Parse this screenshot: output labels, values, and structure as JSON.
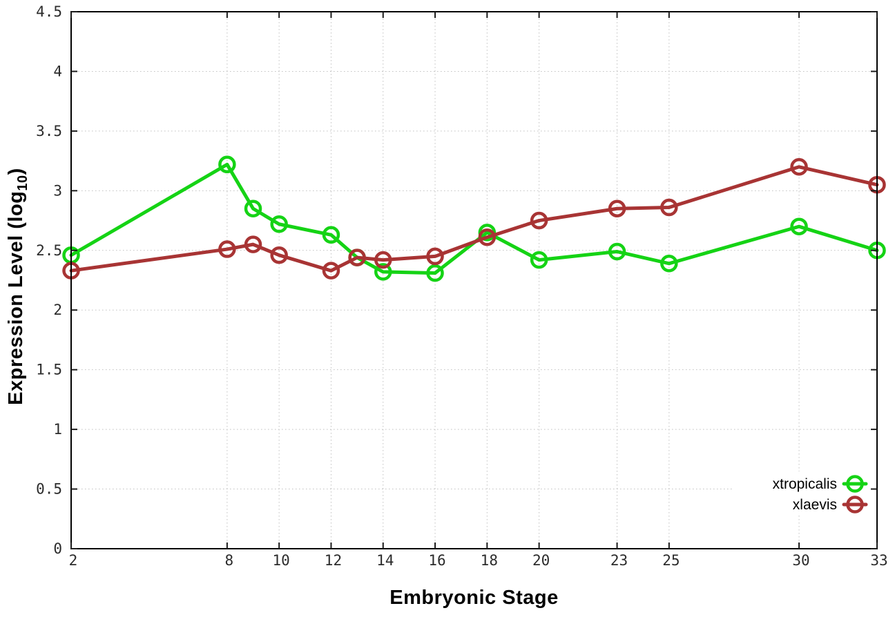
{
  "chart_data": {
    "type": "line",
    "title": "",
    "xlabel": "Embryonic Stage",
    "ylabel": "Expression Level (log10)",
    "ylabel_parts": {
      "main": "Expression Level (log",
      "sub": "10",
      "end": ")"
    },
    "xlim": [
      2,
      33
    ],
    "ylim": [
      0,
      4.5
    ],
    "grid": "dotted",
    "legend_position": "inside-bottom-right",
    "xticks": [
      {
        "v": 2,
        "label": "2"
      },
      {
        "v": 8,
        "label": "8"
      },
      {
        "v": 10,
        "label": "10"
      },
      {
        "v": 12,
        "label": "12"
      },
      {
        "v": 14,
        "label": "14"
      },
      {
        "v": 16,
        "label": "16"
      },
      {
        "v": 18,
        "label": "18"
      },
      {
        "v": 20,
        "label": "20"
      },
      {
        "v": 23,
        "label": "23"
      },
      {
        "v": 25,
        "label": "25"
      },
      {
        "v": 30,
        "label": "30"
      },
      {
        "v": 33,
        "label": "33"
      }
    ],
    "yticks": [
      {
        "v": 0,
        "label": "0"
      },
      {
        "v": 0.5,
        "label": "0.5"
      },
      {
        "v": 1,
        "label": "1"
      },
      {
        "v": 1.5,
        "label": "1.5"
      },
      {
        "v": 2,
        "label": "2"
      },
      {
        "v": 2.5,
        "label": "2.5"
      },
      {
        "v": 3,
        "label": "3"
      },
      {
        "v": 3.5,
        "label": "3.5"
      },
      {
        "v": 4,
        "label": "4"
      },
      {
        "v": 4.5,
        "label": "4.5"
      }
    ],
    "series": [
      {
        "name": "xtropicalis",
        "color": "#15d315",
        "marker": "open-circle",
        "points": [
          [
            2,
            2.46
          ],
          [
            8,
            3.22
          ],
          [
            9,
            2.85
          ],
          [
            10,
            2.72
          ],
          [
            12,
            2.63
          ],
          [
            13,
            2.44
          ],
          [
            14,
            2.32
          ],
          [
            16,
            2.31
          ],
          [
            18,
            2.65
          ],
          [
            20,
            2.42
          ],
          [
            23,
            2.49
          ],
          [
            25,
            2.39
          ],
          [
            30,
            2.7
          ],
          [
            33,
            2.5
          ]
        ]
      },
      {
        "name": "xlaevis",
        "color": "#a83434",
        "marker": "open-circle",
        "points": [
          [
            2,
            2.33
          ],
          [
            8,
            2.51
          ],
          [
            9,
            2.55
          ],
          [
            10,
            2.46
          ],
          [
            12,
            2.33
          ],
          [
            13,
            2.44
          ],
          [
            14,
            2.42
          ],
          [
            16,
            2.45
          ],
          [
            18,
            2.61
          ],
          [
            20,
            2.75
          ],
          [
            23,
            2.85
          ],
          [
            25,
            2.86
          ],
          [
            30,
            3.2
          ],
          [
            33,
            3.05
          ]
        ]
      }
    ],
    "style_colors": {
      "grid": "#c0c0c0",
      "axis": "#000000",
      "tick_text": "#2b2b2b"
    }
  }
}
